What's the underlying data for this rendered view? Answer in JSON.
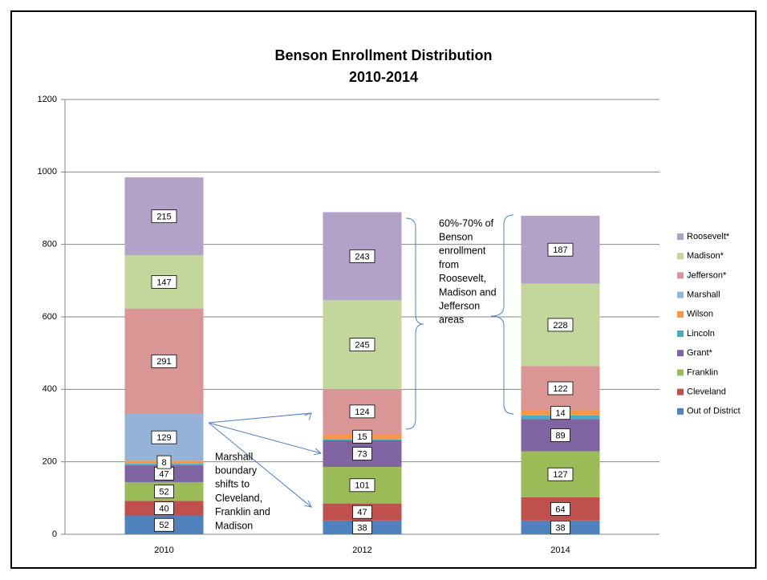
{
  "chart_data": {
    "type": "stacked_bar",
    "title": [
      "Benson Enrollment Distribution",
      "2010-2014"
    ],
    "categories": [
      "2010",
      "2012",
      "2014"
    ],
    "series": [
      {
        "name": "Out of District",
        "color": "#4f81bd",
        "values": [
          52,
          38,
          38
        ],
        "data_labels": true
      },
      {
        "name": "Cleveland",
        "color": "#c0504d",
        "values": [
          40,
          47,
          64
        ],
        "data_labels": true
      },
      {
        "name": "Franklin",
        "color": "#9bbb59",
        "values": [
          52,
          101,
          127
        ],
        "data_labels": true
      },
      {
        "name": "Grant*",
        "color": "#8064a2",
        "values": [
          47,
          73,
          89
        ],
        "data_labels": true
      },
      {
        "name": "Lincoln",
        "color": "#4bacc6",
        "values": [
          4,
          3,
          10
        ],
        "data_labels": false
      },
      {
        "name": "Wilson",
        "color": "#f79646",
        "values": [
          8,
          15,
          14
        ],
        "data_labels": true
      },
      {
        "name": "Marshall",
        "color": "#95b3d7",
        "values": [
          129,
          null,
          null
        ],
        "data_labels": true
      },
      {
        "name": "Jefferson*",
        "color": "#d99694",
        "values": [
          291,
          124,
          122
        ],
        "data_labels": true
      },
      {
        "name": "Madison*",
        "color": "#c3d69b",
        "values": [
          147,
          245,
          228
        ],
        "data_labels": true
      },
      {
        "name": "Roosevelt*",
        "color": "#b3a2c7",
        "values": [
          215,
          243,
          187
        ],
        "data_labels": true
      }
    ],
    "ylim": [
      0,
      1200
    ],
    "yticks": [
      0,
      200,
      400,
      600,
      800,
      1000,
      1200
    ],
    "grid": true,
    "legend": "right",
    "annotations": [
      {
        "lines": [
          "Marshall",
          "boundary",
          "shifts to",
          "Cleveland,",
          "Franklin and",
          "Madison"
        ]
      },
      {
        "lines": [
          "60%-70% of",
          "Benson",
          "enrollment",
          "from",
          "Roosevelt,",
          "Madison and",
          "Jefferson",
          "areas"
        ]
      }
    ]
  }
}
